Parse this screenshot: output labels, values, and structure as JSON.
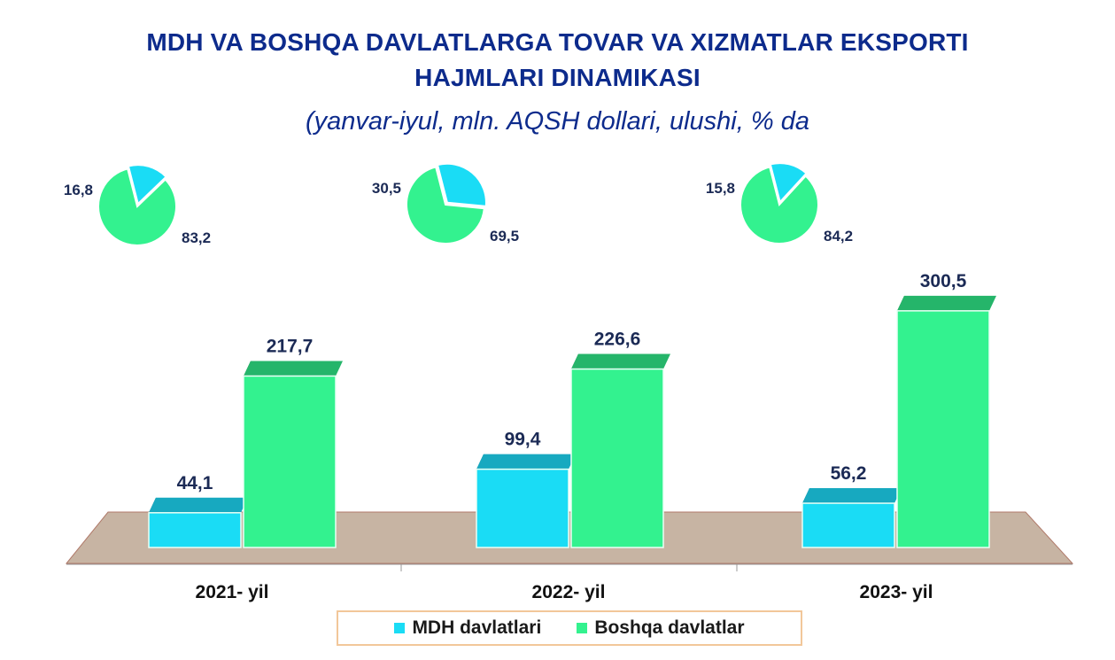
{
  "title_line1": "MDH VA BOSHQA DAVLATLARGA TOVAR VA XIZMATLAR EKSPORTI",
  "title_line2": "HAJMLARI DINAMIKASI",
  "subtitle": "(yanvar-iyul, mln. AQSH dollari, ulushi, % da",
  "colors": {
    "mdh": "#1adcf5",
    "mdh_top": "#17a9c0",
    "mdh_side": "#0f6b78",
    "boshqa": "#33f28f",
    "boshqa_top": "#25b56a",
    "boshqa_side": "#167a45",
    "floor": "#c7b4a3",
    "title": "#0d2b8c",
    "label": "#1b2a55"
  },
  "chart_data": {
    "type": "bar",
    "categories": [
      "2021- yil",
      "2022- yil",
      "2023- yil"
    ],
    "series": [
      {
        "name": "MDH davlatlari",
        "values": [
          44.1,
          99.4,
          56.2
        ],
        "labels": [
          "44,1",
          "99,4",
          "56,2"
        ]
      },
      {
        "name": "Boshqa davlatlar",
        "values": [
          217.7,
          226.6,
          300.5
        ],
        "labels": [
          "217,7",
          "226,6",
          "300,5"
        ]
      }
    ],
    "shares": [
      {
        "mdh": 16.8,
        "boshqa": 83.2,
        "mdh_label": "16,8",
        "boshqa_label": "83,2"
      },
      {
        "mdh": 30.5,
        "boshqa": 69.5,
        "mdh_label": "30,5",
        "boshqa_label": "69,5"
      },
      {
        "mdh": 15.8,
        "boshqa": 84.2,
        "mdh_label": "15,8",
        "boshqa_label": "84,2"
      }
    ],
    "legend_position": "bottom"
  }
}
